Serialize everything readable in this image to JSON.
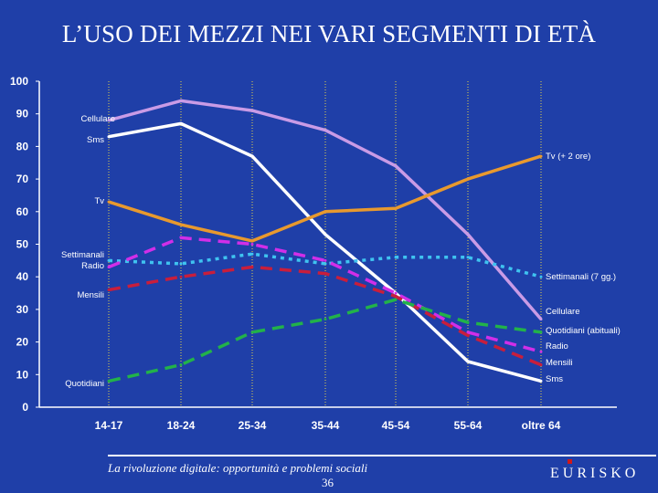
{
  "title": "L’USO DEI MEZZI NEI VARI SEGMENTI DI ETÀ",
  "footer": {
    "text": "La rivoluzione digitale: opportunità e problemi sociali",
    "page": "36",
    "brand": "EURISKO"
  },
  "chart_data": {
    "type": "line",
    "categories": [
      "14-17",
      "18-24",
      "25-34",
      "35-44",
      "45-54",
      "55-64",
      "oltre 64"
    ],
    "ylim": [
      0,
      100
    ],
    "yticks": [
      0,
      10,
      20,
      30,
      40,
      50,
      60,
      70,
      80,
      90,
      100
    ],
    "grid": "vertical dotted lines at categories",
    "series": [
      {
        "name": "Cellulare",
        "left_label": "Cellulare",
        "right_label": "Cellulare",
        "color": "#c99be6",
        "dash": "solid",
        "values": [
          88,
          94,
          91,
          85,
          74,
          53,
          27
        ]
      },
      {
        "name": "Sms",
        "left_label": "Sms",
        "right_label": "Sms",
        "color": "#ffffff",
        "dash": "solid",
        "values": [
          83,
          87,
          77,
          53,
          35,
          14,
          8
        ]
      },
      {
        "name": "Tv",
        "left_label": "Tv",
        "right_label": "Tv (+ 2 ore)",
        "color": "#e8992e",
        "dash": "solid",
        "values": [
          63,
          56,
          51,
          60,
          61,
          70,
          77
        ]
      },
      {
        "name": "Settimanali",
        "left_label": "Settimanali",
        "right_label": "Settimanali (7 gg.)",
        "color": "#3fc3f0",
        "dash": "dotted",
        "values": [
          45,
          44,
          47,
          44,
          46,
          46,
          40
        ]
      },
      {
        "name": "Radio",
        "left_label": "Radio",
        "right_label": "Radio",
        "color": "#d12ee8",
        "dash": "dashed",
        "values": [
          43,
          52,
          50,
          45,
          35,
          23,
          17
        ]
      },
      {
        "name": "Mensili",
        "left_label": "Mensili",
        "right_label": "Mensili",
        "color": "#c81e3c",
        "dash": "dashed",
        "values": [
          36,
          40,
          43,
          41,
          34,
          22,
          13
        ]
      },
      {
        "name": "Quotidiani",
        "left_label": "Quotidiani",
        "right_label": "Quotidiani (abituali)",
        "color": "#22b24a",
        "dash": "dashed",
        "values": [
          8,
          13,
          23,
          27,
          33,
          26,
          23
        ]
      }
    ]
  }
}
